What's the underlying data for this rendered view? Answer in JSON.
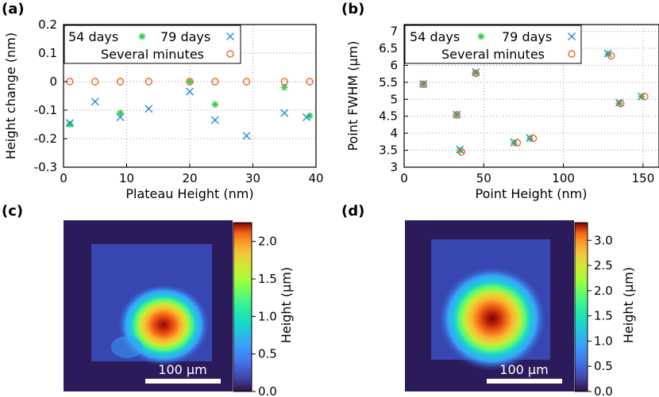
{
  "panel_labels": [
    "(a)",
    "(b)",
    "(c)",
    "(d)"
  ],
  "chart_data": [
    {
      "panel": "(a)",
      "type": "scatter",
      "xlabel": "Plateau Height (nm)",
      "ylabel": "Height change (nm)",
      "xlim": [
        0,
        40
      ],
      "ylim": [
        -0.3,
        0.2
      ],
      "xticks": [
        0,
        10,
        20,
        30,
        40
      ],
      "yticks": [
        -0.3,
        -0.2,
        -0.1,
        0,
        0.1,
        0.2
      ],
      "ytick_labels": [
        "-0.3",
        "-0.2",
        "-0.1",
        "0",
        "0.1",
        "0.2"
      ],
      "grid": "dotted",
      "series": [
        {
          "name": "54 days",
          "marker": "asterisk",
          "color": "#2ecc40",
          "x": [
            1,
            9,
            20,
            24,
            35,
            39
          ],
          "y": [
            -0.15,
            -0.11,
            0,
            -0.08,
            -0.02,
            -0.12
          ]
        },
        {
          "name": "79 days",
          "marker": "x",
          "color": "#1e90d8",
          "x": [
            1,
            5,
            9,
            13.5,
            20,
            24,
            29,
            35,
            38.5
          ],
          "y": [
            -0.145,
            -0.07,
            -0.125,
            -0.095,
            -0.035,
            -0.135,
            -0.19,
            -0.11,
            -0.125
          ]
        },
        {
          "name": "Several minutes",
          "marker": "circle",
          "color": "#f0642a",
          "x": [
            1,
            5,
            9,
            13.5,
            20,
            24,
            29,
            35,
            39
          ],
          "y": [
            0,
            0,
            0,
            0,
            0,
            0,
            0,
            0,
            0
          ]
        }
      ]
    },
    {
      "panel": "(b)",
      "type": "scatter",
      "xlabel": "Point Height (nm)",
      "ylabel": "Point FWHM (µm)",
      "xlim": [
        0,
        160
      ],
      "ylim": [
        3,
        7.2
      ],
      "xticks": [
        0,
        50,
        100,
        150
      ],
      "yticks": [
        3,
        3.5,
        4,
        4.5,
        5,
        5.5,
        6,
        6.5,
        7
      ],
      "ytick_labels": [
        "3",
        "3.5",
        "4",
        "4.5",
        "5",
        "5.5",
        "6",
        "6.5",
        "7"
      ],
      "grid": "dotted",
      "series": [
        {
          "name": "54 days",
          "marker": "asterisk",
          "color": "#2ecc40",
          "x": [
            12,
            33,
            35,
            45,
            69,
            79,
            128,
            135,
            149
          ],
          "y": [
            5.45,
            4.55,
            3.5,
            5.78,
            3.72,
            3.85,
            6.33,
            4.88,
            5.08
          ]
        },
        {
          "name": "79 days",
          "marker": "x",
          "color": "#1e90d8",
          "x": [
            12,
            33,
            35,
            45,
            69,
            79,
            128,
            135,
            149
          ],
          "y": [
            5.45,
            4.55,
            3.52,
            5.8,
            3.73,
            3.86,
            6.35,
            4.9,
            5.08
          ]
        },
        {
          "name": "Several minutes",
          "marker": "circle",
          "color": "#f0642a",
          "x": [
            12,
            33,
            36,
            45,
            71,
            81,
            130,
            136,
            151
          ],
          "y": [
            5.44,
            4.54,
            3.45,
            5.76,
            3.72,
            3.85,
            6.28,
            4.87,
            5.08
          ]
        }
      ]
    },
    {
      "panel": "(c)",
      "type": "heatmap",
      "colorbar_label": "Height (µm)",
      "colorbar_ticks": [
        "0.0",
        "0.5",
        "1.0",
        "1.5",
        "2.0"
      ],
      "colorbar_tick_values": [
        0,
        0.5,
        1.0,
        1.5,
        2.0
      ],
      "colorbar_max": 2.25,
      "scalebar": "100 µm"
    },
    {
      "panel": "(d)",
      "type": "heatmap",
      "colorbar_label": "Height (µm)",
      "colorbar_ticks": [
        "0.0",
        "0.5",
        "1.0",
        "1.5",
        "2.0",
        "2.5",
        "3.0"
      ],
      "colorbar_tick_values": [
        0,
        0.5,
        1.0,
        1.5,
        2.0,
        2.5,
        3.0
      ],
      "colorbar_max": 3.35,
      "scalebar": "100 µm"
    }
  ],
  "colors": {
    "background_dark": "#2b1b5a",
    "plateau": "#3a4ec0",
    "gridline": "#999999"
  }
}
